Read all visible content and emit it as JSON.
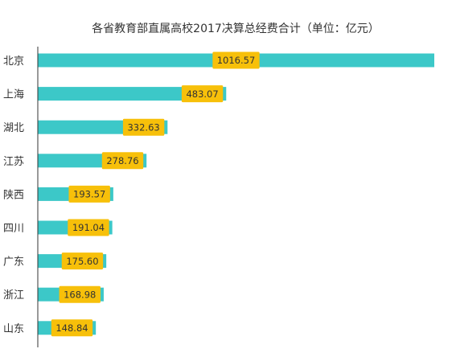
{
  "chart_data": {
    "type": "bar",
    "orientation": "horizontal",
    "title": "各省教育部直属高校2017决算总经费合计（单位：亿元）",
    "categories": [
      "北京",
      "上海",
      "湖北",
      "江苏",
      "陕西",
      "四川",
      "广东",
      "浙江",
      "山东"
    ],
    "series": [
      {
        "values": [
          1016.57,
          483.07,
          332.63,
          278.76,
          193.57,
          191.04,
          175.6,
          168.98,
          148.84
        ]
      }
    ],
    "value_labels": [
      "1016.57",
      "483.07",
      "332.63",
      "278.76",
      "193.57",
      "191.04",
      "175.60",
      "168.98",
      "148.84"
    ],
    "xlim": [
      0,
      1016.57
    ],
    "grid": false,
    "legend": "none",
    "colors": {
      "bar": "#3cc8c8",
      "label_box": "#f7c00a",
      "axis": "#333333"
    }
  }
}
